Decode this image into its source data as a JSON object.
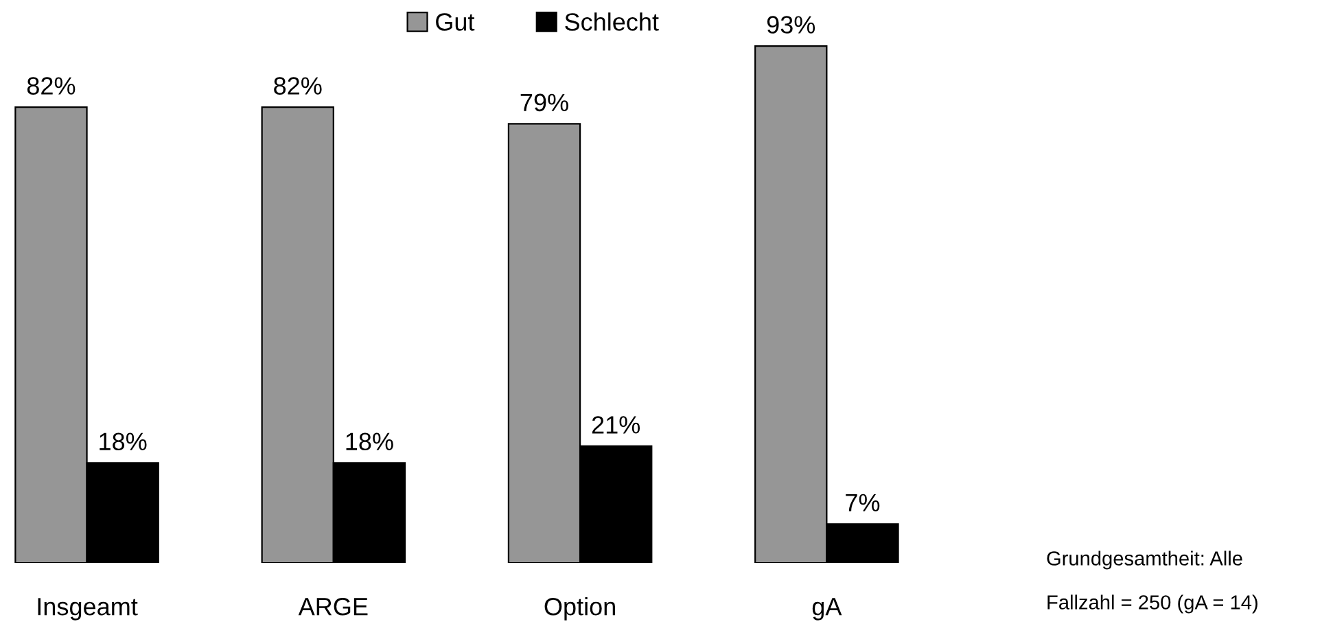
{
  "chart_data": {
    "type": "bar",
    "categories": [
      "Insgeamt",
      "ARGE",
      "Option",
      "gA"
    ],
    "series": [
      {
        "name": "Gut",
        "color": "#969696",
        "values": [
          82,
          82,
          79,
          93
        ],
        "value_labels": [
          "82%",
          "82%",
          "79%",
          "93%"
        ]
      },
      {
        "name": "Schlecht",
        "color": "#000000",
        "values": [
          18,
          18,
          21,
          7
        ],
        "value_labels": [
          "18%",
          "18%",
          "21%",
          "7%"
        ]
      }
    ],
    "legend": "top",
    "grid": false,
    "annotations": [
      "Grundgesamtheit: Alle",
      "Fallzahl = 250 (gA = 14)"
    ]
  }
}
